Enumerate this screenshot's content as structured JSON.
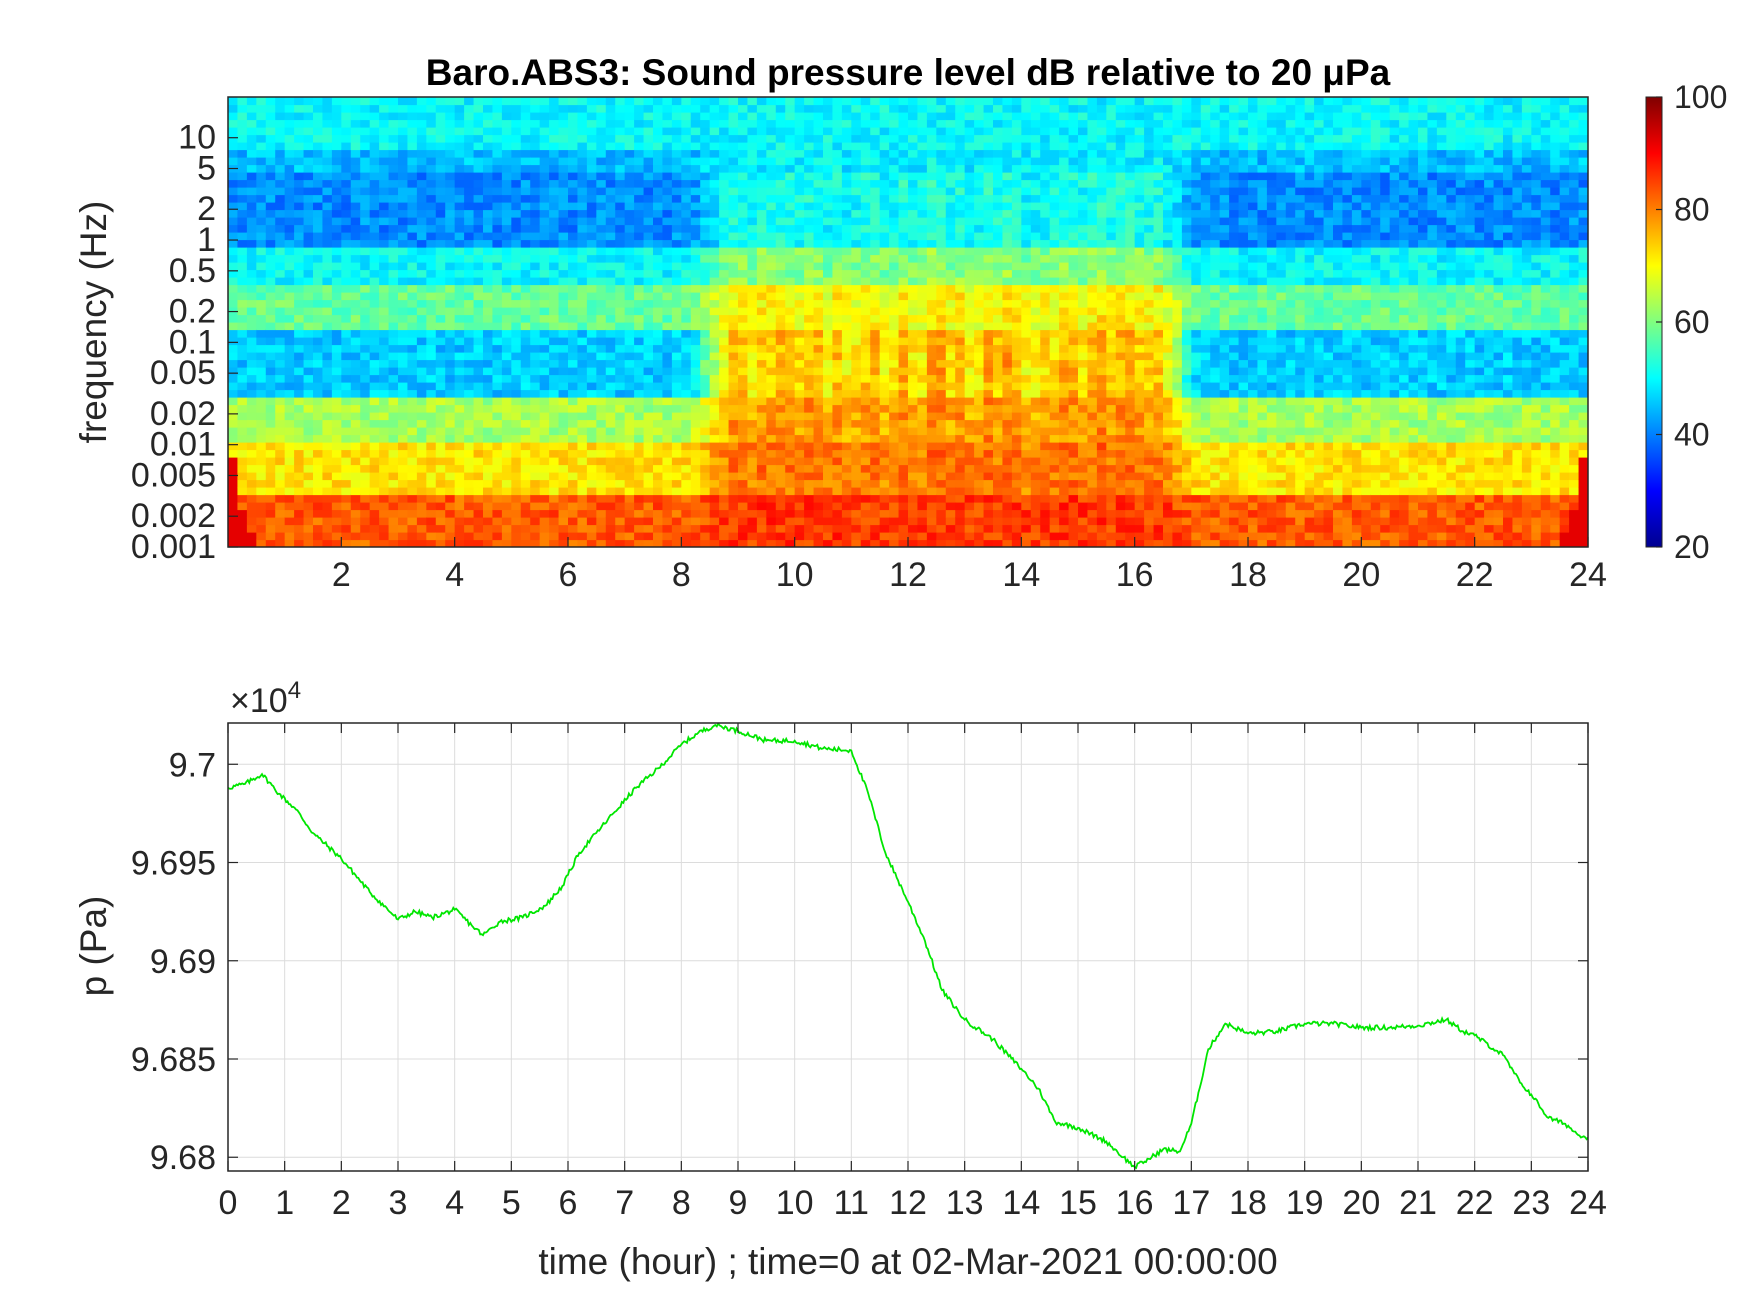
{
  "chart_data": [
    {
      "type": "heatmap",
      "title": "Baro.ABS3: Sound pressure level dB relative to 20 μPa",
      "xlabel": "",
      "ylabel": "frequency (Hz)",
      "xlim": [
        0,
        24
      ],
      "ylim": [
        0.001,
        25
      ],
      "yscale": "log",
      "x_ticks": [
        2,
        4,
        6,
        8,
        10,
        12,
        14,
        16,
        18,
        20,
        22,
        24
      ],
      "y_ticks": [
        0.001,
        0.002,
        0.005,
        0.01,
        0.02,
        0.05,
        0.1,
        0.2,
        0.5,
        1,
        2,
        5,
        10
      ],
      "y_tick_labels": [
        "0.001",
        "0.002",
        "0.005",
        "0.01",
        "0.02",
        "0.05",
        "0.1",
        "0.2",
        "0.5",
        "1",
        "2",
        "5",
        "10"
      ],
      "colormap": "jet",
      "colorbar": {
        "min": 20,
        "max": 100,
        "ticks": [
          20,
          40,
          60,
          80,
          100
        ]
      },
      "grid": false,
      "bands_db": [
        {
          "f_low": 0.001,
          "f_high": 0.003,
          "quiet_db": 83,
          "active_db": 86
        },
        {
          "f_low": 0.003,
          "f_high": 0.01,
          "quiet_db": 72,
          "active_db": 82
        },
        {
          "f_low": 0.01,
          "f_high": 0.03,
          "quiet_db": 63,
          "active_db": 80
        },
        {
          "f_low": 0.03,
          "f_high": 0.14,
          "quiet_db": 46,
          "active_db": 78
        },
        {
          "f_low": 0.14,
          "f_high": 0.4,
          "quiet_db": 58,
          "active_db": 72
        },
        {
          "f_low": 0.4,
          "f_high": 0.8,
          "quiet_db": 50,
          "active_db": 62
        },
        {
          "f_low": 0.8,
          "f_high": 5,
          "quiet_db": 41,
          "active_db": 53
        },
        {
          "f_low": 5,
          "f_high": 8,
          "quiet_db": 45,
          "active_db": 50
        },
        {
          "f_low": 8,
          "f_high": 25,
          "quiet_db": 50,
          "active_db": 50
        }
      ],
      "active_period_hours": [
        8.5,
        16.8
      ]
    },
    {
      "type": "line",
      "title": "",
      "xlabel": "time (hour) ; time=0 at 02-Mar-2021 00:00:00",
      "ylabel": "p (Pa)",
      "exponent_label": "×10",
      "exponent_power": "4",
      "xlim": [
        0,
        24
      ],
      "ylim": [
        96793,
        97021
      ],
      "x_ticks": [
        0,
        1,
        2,
        3,
        4,
        5,
        6,
        7,
        8,
        9,
        10,
        11,
        12,
        13,
        14,
        15,
        16,
        17,
        18,
        19,
        20,
        21,
        22,
        23,
        24
      ],
      "y_ticks": [
        96800,
        96850,
        96900,
        96950,
        97000
      ],
      "y_tick_labels": [
        "9.68",
        "9.685",
        "9.69",
        "9.695",
        "9.7"
      ],
      "grid": true,
      "color": "#00e600",
      "series": [
        {
          "x": [
            0,
            0.3,
            0.6,
            0.9,
            1.2,
            1.5,
            2.0,
            2.5,
            3.0,
            3.3,
            3.6,
            4.0,
            4.3,
            4.5,
            4.8,
            5.2,
            5.6,
            5.9,
            6.2,
            6.5,
            6.8,
            7.2,
            7.6,
            8.0,
            8.3,
            8.6,
            9.0,
            9.5,
            10.0,
            10.5,
            11.0,
            11.3,
            11.6,
            12.0,
            12.3,
            12.6,
            13.0,
            13.5,
            14.0,
            14.3,
            14.6,
            15.0,
            15.5,
            15.8,
            16.0,
            16.3,
            16.5,
            16.8,
            17.0,
            17.3,
            17.6,
            18.0,
            18.5,
            19.0,
            19.5,
            20.0,
            20.5,
            21.0,
            21.5,
            21.8,
            22.0,
            22.5,
            22.8,
            23.0,
            23.3,
            23.6,
            23.8,
            24.0
          ],
          "y": [
            96988,
            96990,
            96995,
            96985,
            96977,
            96965,
            96952,
            96935,
            96921,
            96925,
            96922,
            96926,
            96918,
            96913,
            96920,
            96922,
            96928,
            96938,
            96955,
            96965,
            96975,
            96988,
            96998,
            97010,
            97016,
            97020,
            97017,
            97012,
            97012,
            97008,
            97007,
            96985,
            96955,
            96930,
            96910,
            96885,
            96870,
            96860,
            96845,
            96835,
            96818,
            96815,
            96808,
            96800,
            96795,
            96800,
            96804,
            96803,
            96817,
            96855,
            96868,
            96863,
            96864,
            96868,
            96868,
            96866,
            96866,
            96867,
            96870,
            96864,
            96862,
            96852,
            96838,
            96832,
            96820,
            96817,
            96812,
            96810
          ]
        }
      ]
    }
  ]
}
